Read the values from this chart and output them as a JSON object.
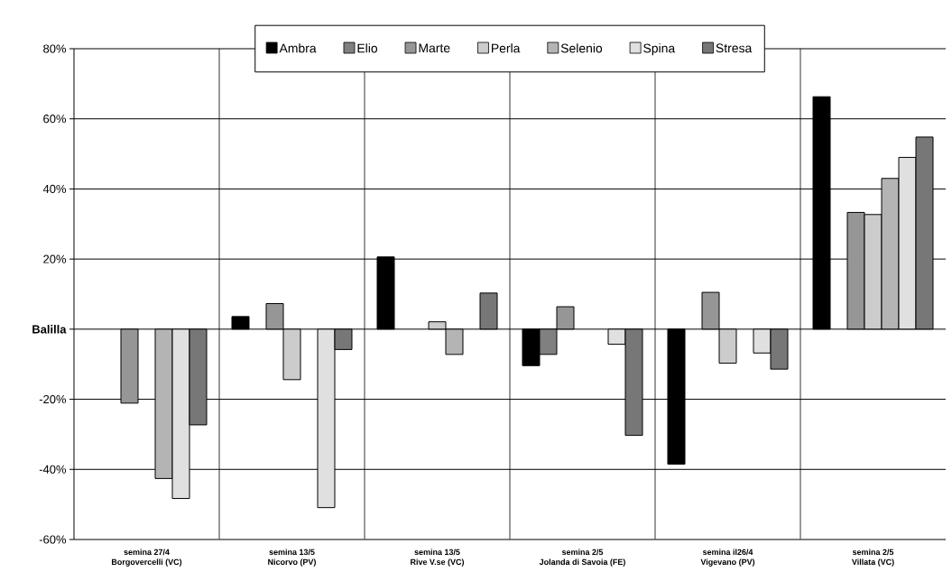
{
  "chart_data": {
    "type": "bar",
    "categories": [
      "semina 27/4 Borgovercelli (VC)",
      "semina 13/5 Nicorvo (PV)",
      "semina 13/5 Rive V.se (VC)",
      "semina 2/5 Jolanda di Savoia (FE)",
      "semina il26/4 Vigevano (PV)",
      "semina 2/5 Villata (VC)"
    ],
    "series": [
      {
        "name": "Ambra",
        "color": "#000000",
        "values": [
          null,
          3.6,
          20.6,
          -10.4,
          -38.5,
          66.3
        ]
      },
      {
        "name": "Elio",
        "color": "#808080",
        "values": [
          null,
          null,
          null,
          -7.2,
          null,
          null
        ]
      },
      {
        "name": "Marte",
        "color": "#969696",
        "values": [
          -21.1,
          7.3,
          null,
          6.4,
          10.5,
          33.3
        ]
      },
      {
        "name": "Perla",
        "color": "#cccccc",
        "values": [
          null,
          -14.4,
          2.1,
          null,
          -9.7,
          32.7
        ]
      },
      {
        "name": "Selenio",
        "color": "#b4b4b4",
        "values": [
          -42.6,
          null,
          -7.2,
          null,
          null,
          43.0
        ]
      },
      {
        "name": "Spina",
        "color": "#e0e0e0",
        "values": [
          -48.3,
          -50.9,
          null,
          -4.3,
          -6.8,
          49.0
        ]
      },
      {
        "name": "Stresa",
        "color": "#777777",
        "values": [
          -27.3,
          -5.8,
          10.3,
          -30.3,
          -11.4,
          54.8
        ]
      }
    ],
    "ylim": [
      -60,
      80
    ],
    "yticks": [
      {
        "value": -60,
        "label": "-60%"
      },
      {
        "value": -40,
        "label": "-40%"
      },
      {
        "value": -20,
        "label": "-20%"
      },
      {
        "value": 0,
        "label": "Balilla"
      },
      {
        "value": 20,
        "label": "20%"
      },
      {
        "value": 40,
        "label": "40%"
      },
      {
        "value": 60,
        "label": "60%"
      },
      {
        "value": 80,
        "label": "80%"
      }
    ],
    "grid": true,
    "legend": "top"
  }
}
